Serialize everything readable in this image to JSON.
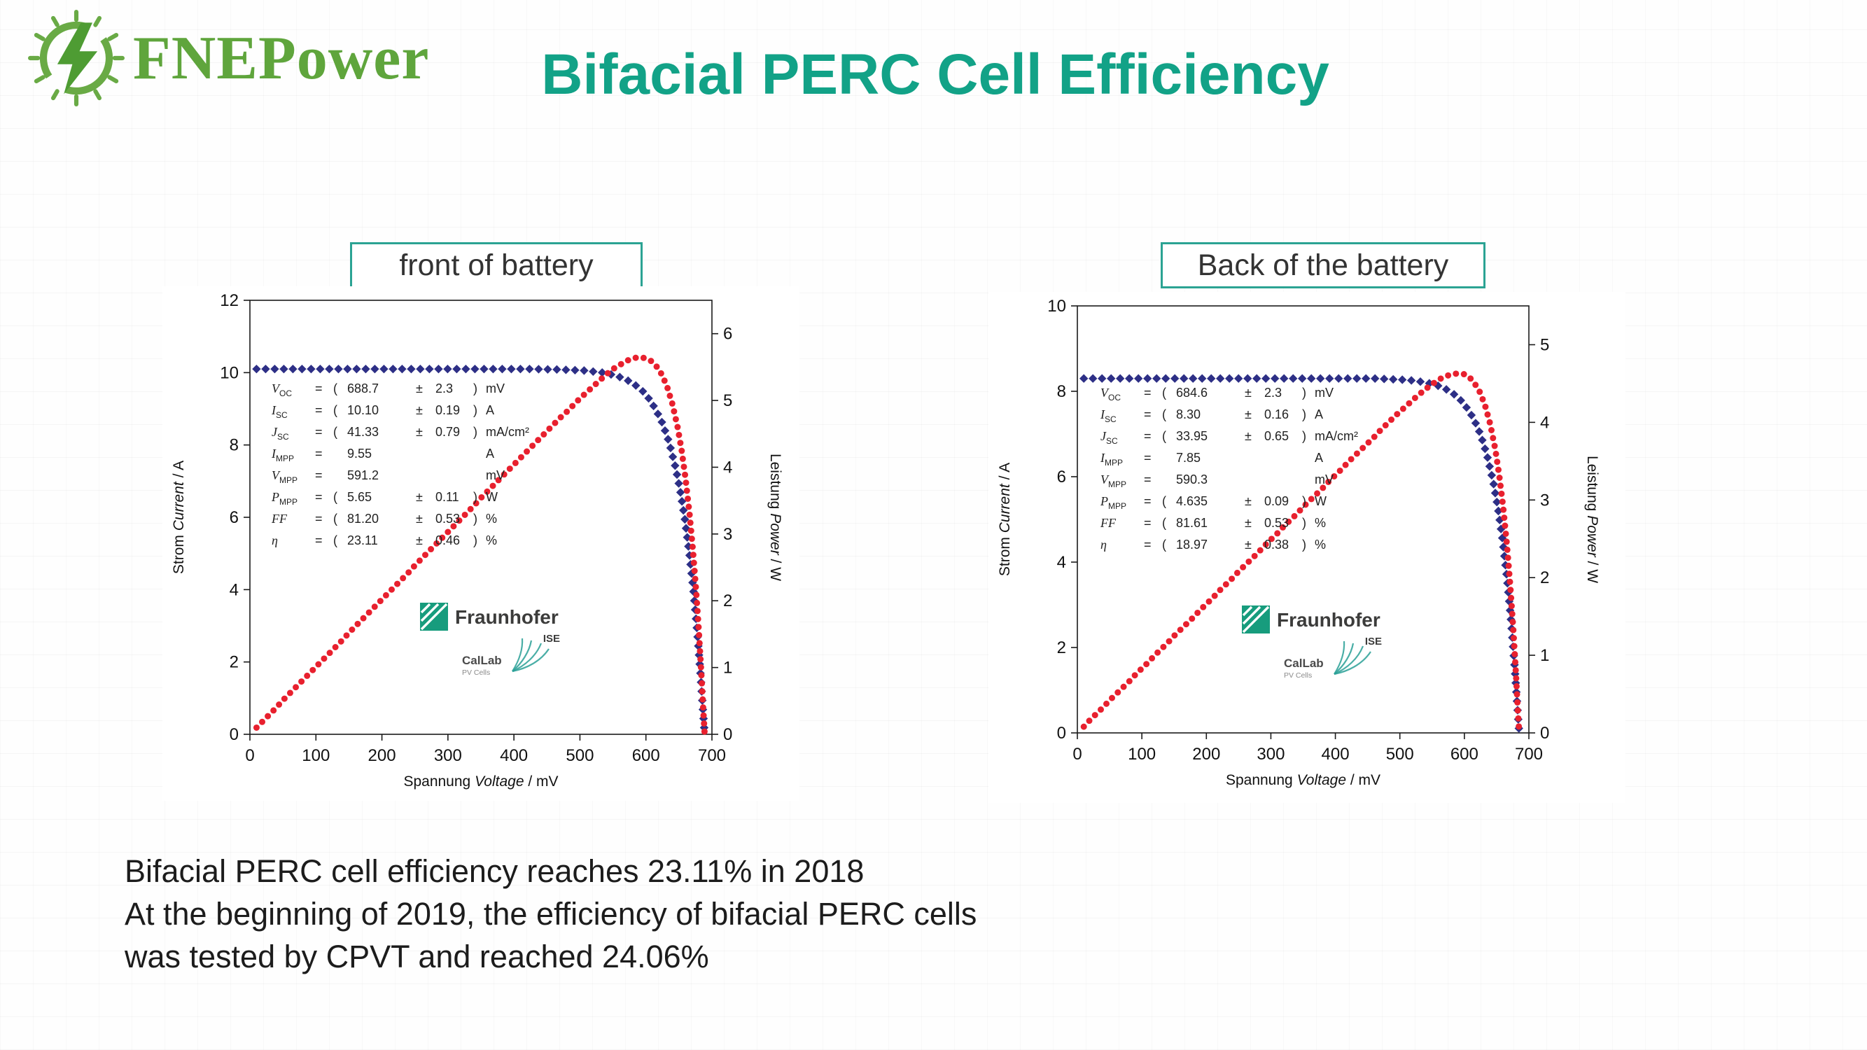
{
  "header": {
    "brand": "FNEPower",
    "title": "Bifacial PERC Cell Efficiency",
    "accent_color": "#12a287",
    "brand_color": "#5fa53c"
  },
  "footer": {
    "lines": [
      "Bifacial PERC cell efficiency reaches 23.11% in 2018",
      "At the beginning of 2019, the efficiency of bifacial PERC cells",
      "was tested by CPVT and reached 24.06%"
    ]
  },
  "chart_data": [
    {
      "type": "line",
      "title": "front of battery",
      "xlabel": {
        "de": "Spannung",
        "en": "Voltage",
        "unit": "/ mV"
      },
      "ylabel_left": {
        "de": "Strom",
        "en": "Current",
        "unit": "/ A"
      },
      "ylabel_right": {
        "de": "Leistung",
        "en": "Power",
        "unit": "/ W"
      },
      "xlim": [
        0,
        700
      ],
      "ylim_left": [
        0,
        12
      ],
      "ylim_right": [
        0,
        6.5
      ],
      "x_ticks": [
        0,
        100,
        200,
        300,
        400,
        500,
        600,
        700
      ],
      "y_ticks_left": [
        0,
        2,
        4,
        6,
        8,
        10,
        12
      ],
      "y_ticks_right": [
        0,
        1,
        2,
        3,
        4,
        5,
        6
      ],
      "grid": false,
      "series": [
        {
          "name": "current",
          "axis": "left",
          "marker": "diamond",
          "color": "#2d2f86",
          "x": [
            10,
            25,
            40,
            55,
            70,
            85,
            100,
            115,
            130,
            145,
            160,
            175,
            190,
            205,
            220,
            235,
            250,
            265,
            280,
            295,
            310,
            325,
            340,
            355,
            370,
            385,
            400,
            415,
            430,
            445,
            460,
            475,
            490,
            505,
            515,
            525,
            535,
            545,
            555,
            565,
            575,
            585,
            595,
            605,
            615,
            625,
            635,
            645,
            652,
            659,
            666,
            672,
            678,
            683,
            687,
            689
          ],
          "y": [
            10.1,
            10.1,
            10.1,
            10.1,
            10.1,
            10.1,
            10.1,
            10.1,
            10.1,
            10.1,
            10.1,
            10.1,
            10.1,
            10.1,
            10.1,
            10.1,
            10.1,
            10.1,
            10.1,
            10.1,
            10.1,
            10.1,
            10.1,
            10.1,
            10.1,
            10.1,
            10.1,
            10.1,
            10.1,
            10.09,
            10.09,
            10.08,
            10.07,
            10.06,
            10.04,
            10.02,
            10.0,
            9.96,
            9.91,
            9.85,
            9.76,
            9.64,
            9.49,
            9.27,
            8.98,
            8.6,
            8.08,
            7.37,
            6.73,
            5.94,
            4.97,
            3.97,
            2.76,
            1.58,
            0.5,
            0
          ]
        },
        {
          "name": "power",
          "axis": "right",
          "marker": "dot",
          "color": "#e8202e",
          "x": [
            10,
            20,
            30,
            40,
            50,
            60,
            70,
            80,
            90,
            100,
            110,
            120,
            130,
            140,
            150,
            160,
            170,
            180,
            190,
            200,
            210,
            220,
            230,
            240,
            250,
            260,
            270,
            280,
            290,
            300,
            310,
            320,
            330,
            340,
            350,
            360,
            370,
            380,
            390,
            400,
            410,
            420,
            430,
            440,
            450,
            460,
            470,
            480,
            490,
            500,
            510,
            520,
            530,
            540,
            550,
            560,
            570,
            580,
            590,
            600,
            608,
            616,
            624,
            632,
            640,
            648,
            654,
            660,
            666,
            671,
            676,
            680,
            684,
            687,
            689
          ],
          "y": [
            0.1,
            0.2,
            0.3,
            0.4,
            0.51,
            0.61,
            0.71,
            0.81,
            0.91,
            1.01,
            1.11,
            1.21,
            1.31,
            1.41,
            1.52,
            1.62,
            1.72,
            1.82,
            1.92,
            2.02,
            2.12,
            2.22,
            2.32,
            2.42,
            2.53,
            2.63,
            2.73,
            2.83,
            2.93,
            3.03,
            3.13,
            3.23,
            3.33,
            3.43,
            3.54,
            3.64,
            3.74,
            3.84,
            3.94,
            4.04,
            4.14,
            4.24,
            4.34,
            4.44,
            4.54,
            4.64,
            4.74,
            4.83,
            4.93,
            5.03,
            5.12,
            5.21,
            5.3,
            5.39,
            5.47,
            5.53,
            5.59,
            5.63,
            5.65,
            5.63,
            5.59,
            5.51,
            5.39,
            5.21,
            4.95,
            4.6,
            4.26,
            3.83,
            3.31,
            2.78,
            2.16,
            1.57,
            0.9,
            0.34,
            0
          ]
        }
      ],
      "annotations": [
        {
          "sym": "V",
          "sub": "OC",
          "val": "688.7",
          "err": "2.3",
          "unit": "mV"
        },
        {
          "sym": "I",
          "sub": "SC",
          "val": "10.10",
          "err": "0.19",
          "unit": "A"
        },
        {
          "sym": "J",
          "sub": "SC",
          "val": "41.33",
          "err": "0.79",
          "unit": "mA/cm²"
        },
        {
          "sym": "I",
          "sub": "MPP",
          "val": "9.55",
          "err": "",
          "unit": "A"
        },
        {
          "sym": "V",
          "sub": "MPP",
          "val": "591.2",
          "err": "",
          "unit": "mV"
        },
        {
          "sym": "P",
          "sub": "MPP",
          "val": "5.65",
          "err": "0.11",
          "unit": "W"
        },
        {
          "sym": "FF",
          "sub": "",
          "val": "81.20",
          "err": "0.53",
          "unit": "%"
        },
        {
          "sym": "η",
          "sub": "",
          "val": "23.11",
          "err": "0.46",
          "unit": "%"
        }
      ],
      "logos": {
        "fraunhofer": "Fraunhofer",
        "institute": "ISE",
        "callab": "CalLab",
        "callab_sub": "PV Cells"
      }
    },
    {
      "type": "line",
      "title": "Back of the battery",
      "xlabel": {
        "de": "Spannung",
        "en": "Voltage",
        "unit": "/ mV"
      },
      "ylabel_left": {
        "de": "Strom",
        "en": "Current",
        "unit": "/ A"
      },
      "ylabel_right": {
        "de": "Leistung",
        "en": "Power",
        "unit": "/ W"
      },
      "xlim": [
        0,
        700
      ],
      "ylim_left": [
        0,
        10
      ],
      "ylim_right": [
        0,
        5.5
      ],
      "x_ticks": [
        0,
        100,
        200,
        300,
        400,
        500,
        600,
        700
      ],
      "y_ticks_left": [
        0,
        2,
        4,
        6,
        8,
        10
      ],
      "y_ticks_right": [
        0,
        1,
        2,
        3,
        4,
        5
      ],
      "grid": false,
      "series": [
        {
          "name": "current",
          "axis": "left",
          "marker": "diamond",
          "color": "#2d2f86",
          "x": [
            10,
            25,
            40,
            55,
            70,
            85,
            100,
            115,
            130,
            145,
            160,
            175,
            190,
            205,
            220,
            235,
            250,
            265,
            280,
            295,
            310,
            325,
            340,
            355,
            370,
            385,
            400,
            415,
            430,
            445,
            460,
            475,
            490,
            505,
            515,
            525,
            535,
            545,
            555,
            565,
            575,
            585,
            595,
            605,
            615,
            625,
            635,
            645,
            652,
            659,
            666,
            672,
            678,
            682,
            685
          ],
          "y": [
            8.3,
            8.3,
            8.3,
            8.3,
            8.3,
            8.3,
            8.3,
            8.3,
            8.3,
            8.3,
            8.3,
            8.3,
            8.3,
            8.3,
            8.3,
            8.3,
            8.3,
            8.3,
            8.3,
            8.3,
            8.3,
            8.3,
            8.3,
            8.3,
            8.3,
            8.3,
            8.3,
            8.3,
            8.3,
            8.3,
            8.3,
            8.29,
            8.28,
            8.27,
            8.26,
            8.24,
            8.22,
            8.19,
            8.15,
            8.1,
            8.02,
            7.92,
            7.78,
            7.59,
            7.34,
            6.99,
            6.51,
            5.86,
            5.27,
            4.54,
            3.63,
            2.68,
            1.53,
            0.64,
            0
          ]
        },
        {
          "name": "power",
          "axis": "right",
          "marker": "dot",
          "color": "#e8202e",
          "x": [
            10,
            20,
            30,
            40,
            50,
            60,
            70,
            80,
            90,
            100,
            110,
            120,
            130,
            140,
            150,
            160,
            170,
            180,
            190,
            200,
            210,
            220,
            230,
            240,
            250,
            260,
            270,
            280,
            290,
            300,
            310,
            320,
            330,
            340,
            350,
            360,
            370,
            380,
            390,
            400,
            410,
            420,
            430,
            440,
            450,
            460,
            470,
            480,
            490,
            500,
            510,
            520,
            530,
            540,
            550,
            560,
            570,
            580,
            590,
            600,
            608,
            616,
            624,
            632,
            640,
            648,
            654,
            660,
            666,
            671,
            676,
            680,
            683,
            685
          ],
          "y": [
            0.08,
            0.17,
            0.25,
            0.33,
            0.42,
            0.5,
            0.58,
            0.66,
            0.75,
            0.83,
            0.91,
            1.0,
            1.08,
            1.16,
            1.25,
            1.33,
            1.41,
            1.49,
            1.58,
            1.66,
            1.74,
            1.83,
            1.91,
            1.99,
            2.08,
            2.16,
            2.24,
            2.32,
            2.41,
            2.49,
            2.57,
            2.66,
            2.74,
            2.82,
            2.91,
            2.99,
            3.07,
            3.15,
            3.24,
            3.32,
            3.4,
            3.49,
            3.57,
            3.65,
            3.73,
            3.81,
            3.9,
            3.98,
            4.06,
            4.14,
            4.21,
            4.29,
            4.36,
            4.43,
            4.49,
            4.55,
            4.59,
            4.62,
            4.63,
            4.62,
            4.58,
            4.5,
            4.39,
            4.22,
            3.98,
            3.65,
            3.32,
            2.92,
            2.42,
            1.91,
            1.31,
            0.75,
            0.27,
            0
          ]
        }
      ],
      "annotations": [
        {
          "sym": "V",
          "sub": "OC",
          "val": "684.6",
          "err": "2.3",
          "unit": "mV"
        },
        {
          "sym": "I",
          "sub": "SC",
          "val": "8.30",
          "err": "0.16",
          "unit": "A"
        },
        {
          "sym": "J",
          "sub": "SC",
          "val": "33.95",
          "err": "0.65",
          "unit": "mA/cm²"
        },
        {
          "sym": "I",
          "sub": "MPP",
          "val": "7.85",
          "err": "",
          "unit": "A"
        },
        {
          "sym": "V",
          "sub": "MPP",
          "val": "590.3",
          "err": "",
          "unit": "mV"
        },
        {
          "sym": "P",
          "sub": "MPP",
          "val": "4.635",
          "err": "0.09",
          "unit": "W"
        },
        {
          "sym": "FF",
          "sub": "",
          "val": "81.61",
          "err": "0.53",
          "unit": "%"
        },
        {
          "sym": "η",
          "sub": "",
          "val": "18.97",
          "err": "0.38",
          "unit": "%"
        }
      ],
      "logos": {
        "fraunhofer": "Fraunhofer",
        "institute": "ISE",
        "callab": "CalLab",
        "callab_sub": "PV Cells"
      }
    }
  ]
}
